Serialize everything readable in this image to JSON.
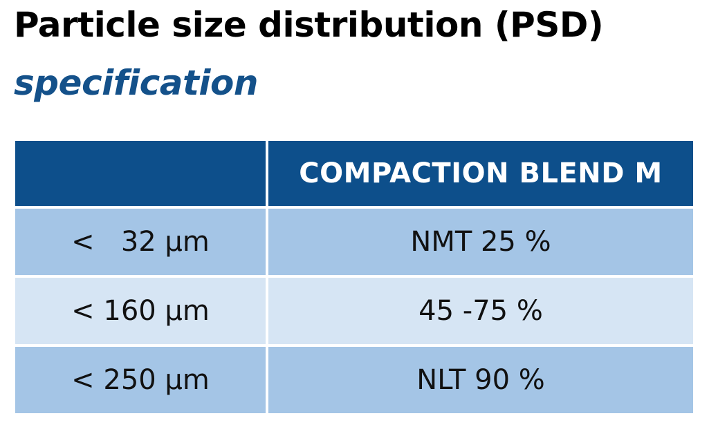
{
  "title": "Particle size distribution (PSD)",
  "subtitle": "specification",
  "table": {
    "header": {
      "size_col": "",
      "value_col": "COMPACTION BLEND M"
    },
    "rows": [
      {
        "size": "<   32 µm",
        "value": "NMT 25 %"
      },
      {
        "size": "< 160 µm",
        "value": "45 -75 %"
      },
      {
        "size": "< 250 µm",
        "value": "NLT 90 %"
      }
    ]
  },
  "colors": {
    "header_bg": "#0d4f8b",
    "subtitle": "#14518a",
    "row_dark": "#a4c5e6",
    "row_light": "#d6e5f4"
  }
}
